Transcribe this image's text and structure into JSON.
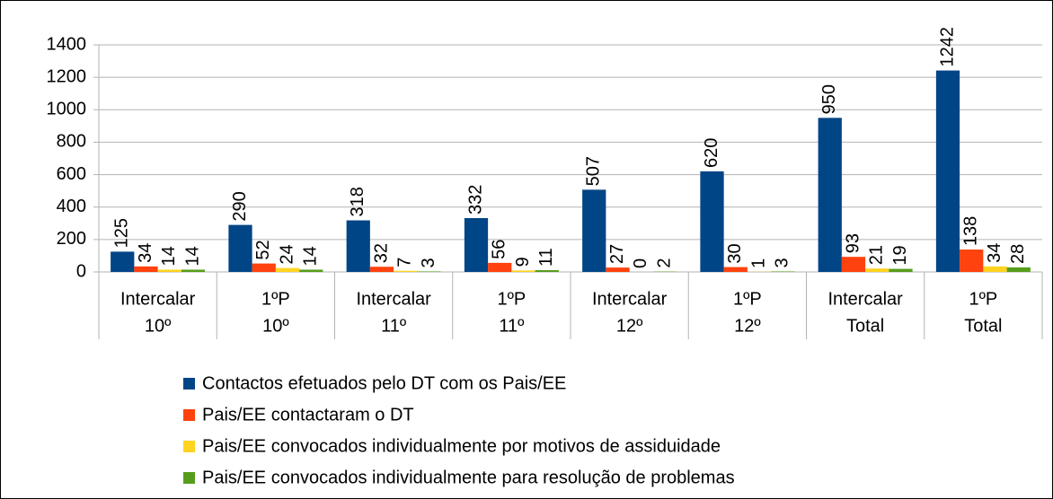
{
  "chart_data": {
    "type": "bar",
    "categories": [
      [
        "Intercalar",
        "10º"
      ],
      [
        "1ºP",
        "10º"
      ],
      [
        "Intercalar",
        "11º"
      ],
      [
        "1ºP",
        "11º"
      ],
      [
        "Intercalar",
        "12º"
      ],
      [
        "1ºP",
        "12º"
      ],
      [
        "Intercalar",
        "Total"
      ],
      [
        "1ºP",
        "Total"
      ]
    ],
    "series": [
      {
        "name": "Contactos efetuados pelo DT com os Pais/EE",
        "color": "#004586",
        "values": [
          125,
          290,
          318,
          332,
          507,
          620,
          950,
          1242
        ]
      },
      {
        "name": "Pais/EE contactaram o DT",
        "color": "#ff420e",
        "values": [
          34,
          52,
          32,
          56,
          27,
          30,
          93,
          138
        ]
      },
      {
        "name": "Pais/EE convocados individualmente por motivos de assiduidade",
        "color": "#ffd320",
        "values": [
          14,
          24,
          7,
          9,
          0,
          1,
          21,
          34
        ]
      },
      {
        "name": "Pais/EE convocados individualmente para resolução de problemas",
        "color": "#579d1c",
        "values": [
          14,
          14,
          3,
          11,
          2,
          3,
          19,
          28
        ]
      }
    ],
    "ylim": [
      0,
      1400
    ],
    "yticks": [
      0,
      200,
      400,
      600,
      800,
      1000,
      1200,
      1400
    ],
    "grid": true,
    "legend": "bottom"
  }
}
